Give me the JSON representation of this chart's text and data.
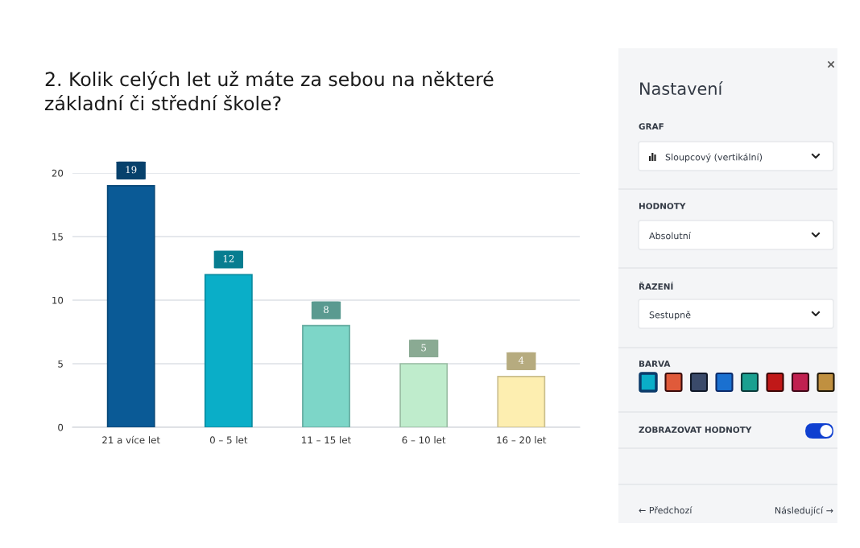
{
  "chart_data": [
    {
      "type": "bar",
      "title": "2. Kolik celých let už máte za sebou na některé\nzákladní či střední škole?",
      "categories": [
        "21 a více let",
        "0 – 5 let",
        "11 – 15 let",
        "6 – 10 let",
        "16 – 20 let"
      ],
      "values": [
        19,
        12,
        8,
        5,
        4
      ],
      "colors": [
        "#0a5a96",
        "#0aaec8",
        "#7dd6c8",
        "#bfeccc",
        "#fdeeb0"
      ],
      "ylim": [
        0,
        20
      ],
      "yticks": [
        0,
        5,
        10,
        15,
        20
      ],
      "grid": "y",
      "data_labels": true
    },
    {
      "type": "other",
      "annotations": [
        "Nastavení",
        "GRAF",
        "Sloupcový (vertikální)",
        "HODNOTY",
        "Absolutní",
        "ŘAZENÍ",
        "Sestupně",
        "BARVA",
        "ZOBRAZOVAT HODNOTY",
        "← Předchozí",
        "Následující →"
      ]
    }
  ]
}
